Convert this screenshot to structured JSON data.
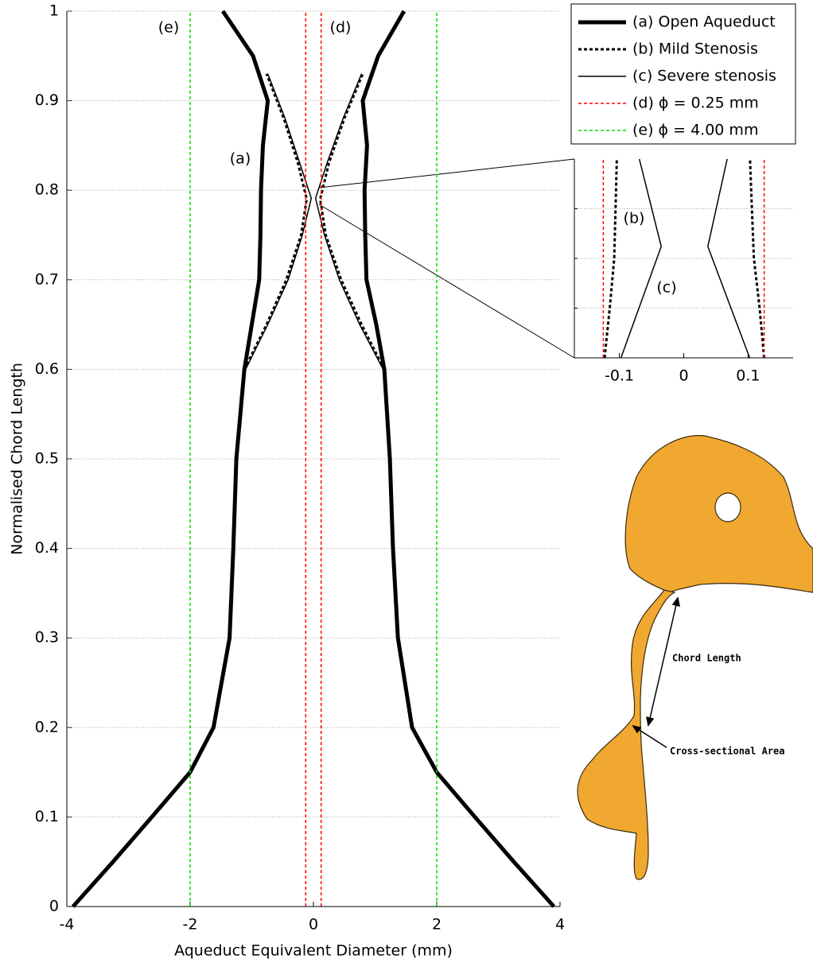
{
  "chart_data": [
    {
      "type": "line",
      "xlabel": "Aqueduct Equivalent Diameter (mm)",
      "ylabel": "Normalised Chord Length",
      "xlim": [
        -4,
        4
      ],
      "ylim": [
        0,
        1
      ],
      "xticks": [
        -4,
        -2,
        0,
        2,
        4
      ],
      "yticks": [
        0,
        0.1,
        0.2,
        0.3,
        0.4,
        0.5,
        0.6,
        0.7,
        0.8,
        0.9,
        1
      ],
      "grid": true,
      "legend": "top-right",
      "annotations": [
        "(a)",
        "(d)",
        "(e)"
      ],
      "series": [
        {
          "name": "(a) Open Aqueduct",
          "color": "#000000",
          "width": 5,
          "dash": "none",
          "x": [
            -3.9,
            -3.25,
            -2.62,
            -2.0,
            -1.62,
            -1.36,
            -1.3,
            -1.25,
            -1.12,
            -1.0,
            -0.88,
            -0.86,
            -0.85,
            -0.82,
            -0.74,
            -0.98,
            -1.47,
            null,
            3.9,
            3.25,
            2.62,
            2.0,
            1.6,
            1.37,
            1.29,
            1.24,
            1.15,
            1.02,
            0.86,
            0.84,
            0.83,
            0.87,
            0.8,
            1.05,
            1.47
          ],
          "y": [
            0,
            0.05,
            0.1,
            0.15,
            0.2,
            0.3,
            0.4,
            0.5,
            0.6,
            0.65,
            0.7,
            0.75,
            0.8,
            0.85,
            0.9,
            0.95,
            1,
            null,
            0,
            0.05,
            0.1,
            0.15,
            0.2,
            0.3,
            0.4,
            0.5,
            0.6,
            0.65,
            0.7,
            0.75,
            0.8,
            0.85,
            0.9,
            0.95,
            1
          ]
        },
        {
          "name": "(b) Mild Stenosis",
          "color": "#000000",
          "width": 3,
          "dash": "4,3",
          "x": [
            -1.12,
            -0.76,
            -0.44,
            -0.2,
            -0.11,
            -0.25,
            -0.48,
            -0.76,
            null,
            1.15,
            0.78,
            0.45,
            0.2,
            0.11,
            0.25,
            0.5,
            0.8
          ],
          "y": [
            0.6,
            0.65,
            0.7,
            0.75,
            0.79,
            0.83,
            0.88,
            0.93,
            null,
            0.6,
            0.65,
            0.7,
            0.75,
            0.79,
            0.83,
            0.88,
            0.93
          ]
        },
        {
          "name": "(c) Severe stenosis",
          "color": "#000000",
          "width": 1.5,
          "dash": "none",
          "x": [
            -1.1,
            -0.74,
            -0.41,
            -0.18,
            -0.035,
            -0.22,
            -0.46,
            -0.74,
            null,
            1.13,
            0.75,
            0.42,
            0.18,
            0.035,
            0.22,
            0.48,
            0.78
          ],
          "y": [
            0.6,
            0.65,
            0.7,
            0.75,
            0.791,
            0.83,
            0.88,
            0.93,
            null,
            0.6,
            0.65,
            0.7,
            0.75,
            0.791,
            0.83,
            0.88,
            0.93
          ]
        },
        {
          "name": "(d) ϕ = 0.25 mm",
          "color": "#ff0000",
          "width": 1.5,
          "dash": "4,3",
          "x": [
            -0.125,
            -0.125,
            null,
            0.125,
            0.125
          ],
          "y": [
            0,
            1,
            null,
            0,
            1
          ]
        },
        {
          "name": "(e) ϕ = 4.00 mm",
          "color": "#00dd00",
          "width": 1.5,
          "dash": "4,3",
          "x": [
            -2,
            -2,
            null,
            2,
            2
          ],
          "y": [
            0,
            1,
            null,
            0,
            1
          ]
        }
      ]
    },
    {
      "type": "line",
      "xlim": [
        -0.17,
        0.17
      ],
      "ylim": [
        0.78,
        0.8
      ],
      "xticks": [
        -0.1,
        0,
        0.1
      ],
      "ygrid": [
        0.785,
        0.79,
        0.795
      ],
      "annotations": [
        "(b)",
        "(c)"
      ],
      "series": [
        {
          "color": "#000000",
          "width": 3,
          "dash": "4,3",
          "x": [
            -0.123,
            -0.115,
            -0.108,
            -0.106,
            -0.104,
            null,
            0.125,
            0.118,
            0.109,
            0.106,
            0.103
          ],
          "y": [
            0.78,
            0.785,
            0.79,
            0.795,
            0.8,
            null,
            0.78,
            0.785,
            0.79,
            0.795,
            0.8
          ]
        },
        {
          "color": "#000000",
          "width": 1.5,
          "dash": "none",
          "x": [
            -0.0975,
            -0.035,
            -0.069,
            null,
            0.1025,
            0.0375,
            0.0675
          ],
          "y": [
            0.78,
            0.7912,
            0.8,
            null,
            0.78,
            0.7912,
            0.8
          ]
        },
        {
          "color": "#ff0000",
          "width": 1.5,
          "dash": "4,3",
          "x": [
            -0.125,
            -0.125,
            null,
            0.125,
            0.125
          ],
          "y": [
            0.78,
            0.8,
            null,
            0.78,
            0.8
          ]
        }
      ]
    }
  ],
  "image_labels": [
    "Chord Length",
    "Cross-sectional Area"
  ]
}
